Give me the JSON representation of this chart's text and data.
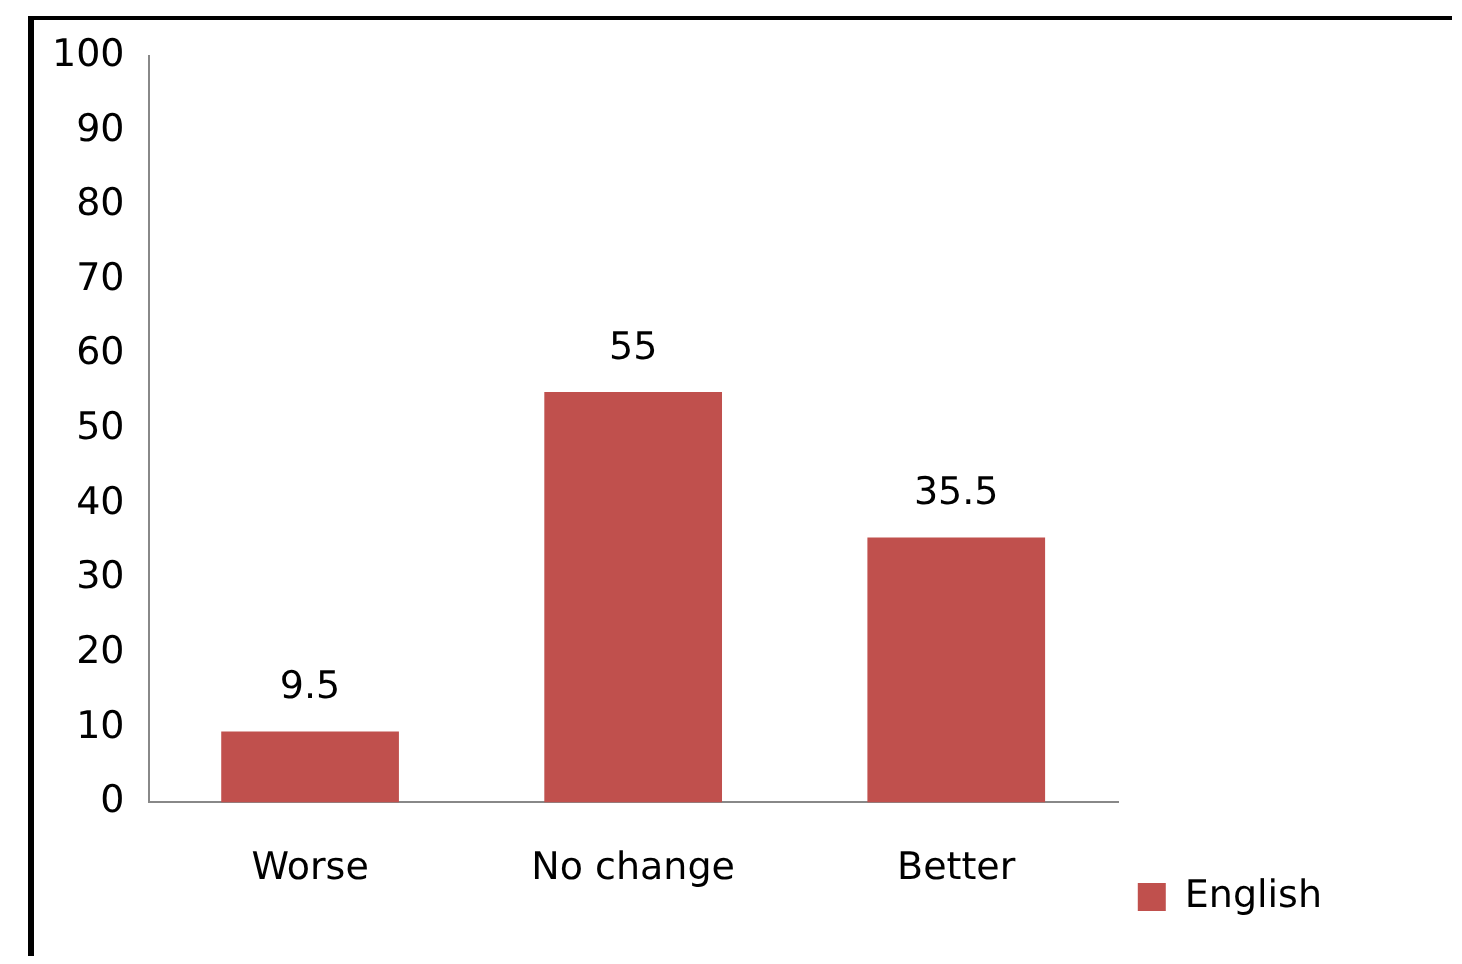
{
  "chart_data": {
    "type": "bar",
    "categories": [
      "Worse",
      "No change",
      "Better"
    ],
    "series": [
      {
        "name": "English",
        "color": "#c0504d",
        "values": [
          9.5,
          55,
          35.5
        ]
      }
    ],
    "ylim": [
      0,
      100
    ],
    "yticks": [
      0,
      10,
      20,
      30,
      40,
      50,
      60,
      70,
      80,
      90,
      100
    ],
    "grid": false,
    "legend": "right",
    "data_labels": true
  }
}
